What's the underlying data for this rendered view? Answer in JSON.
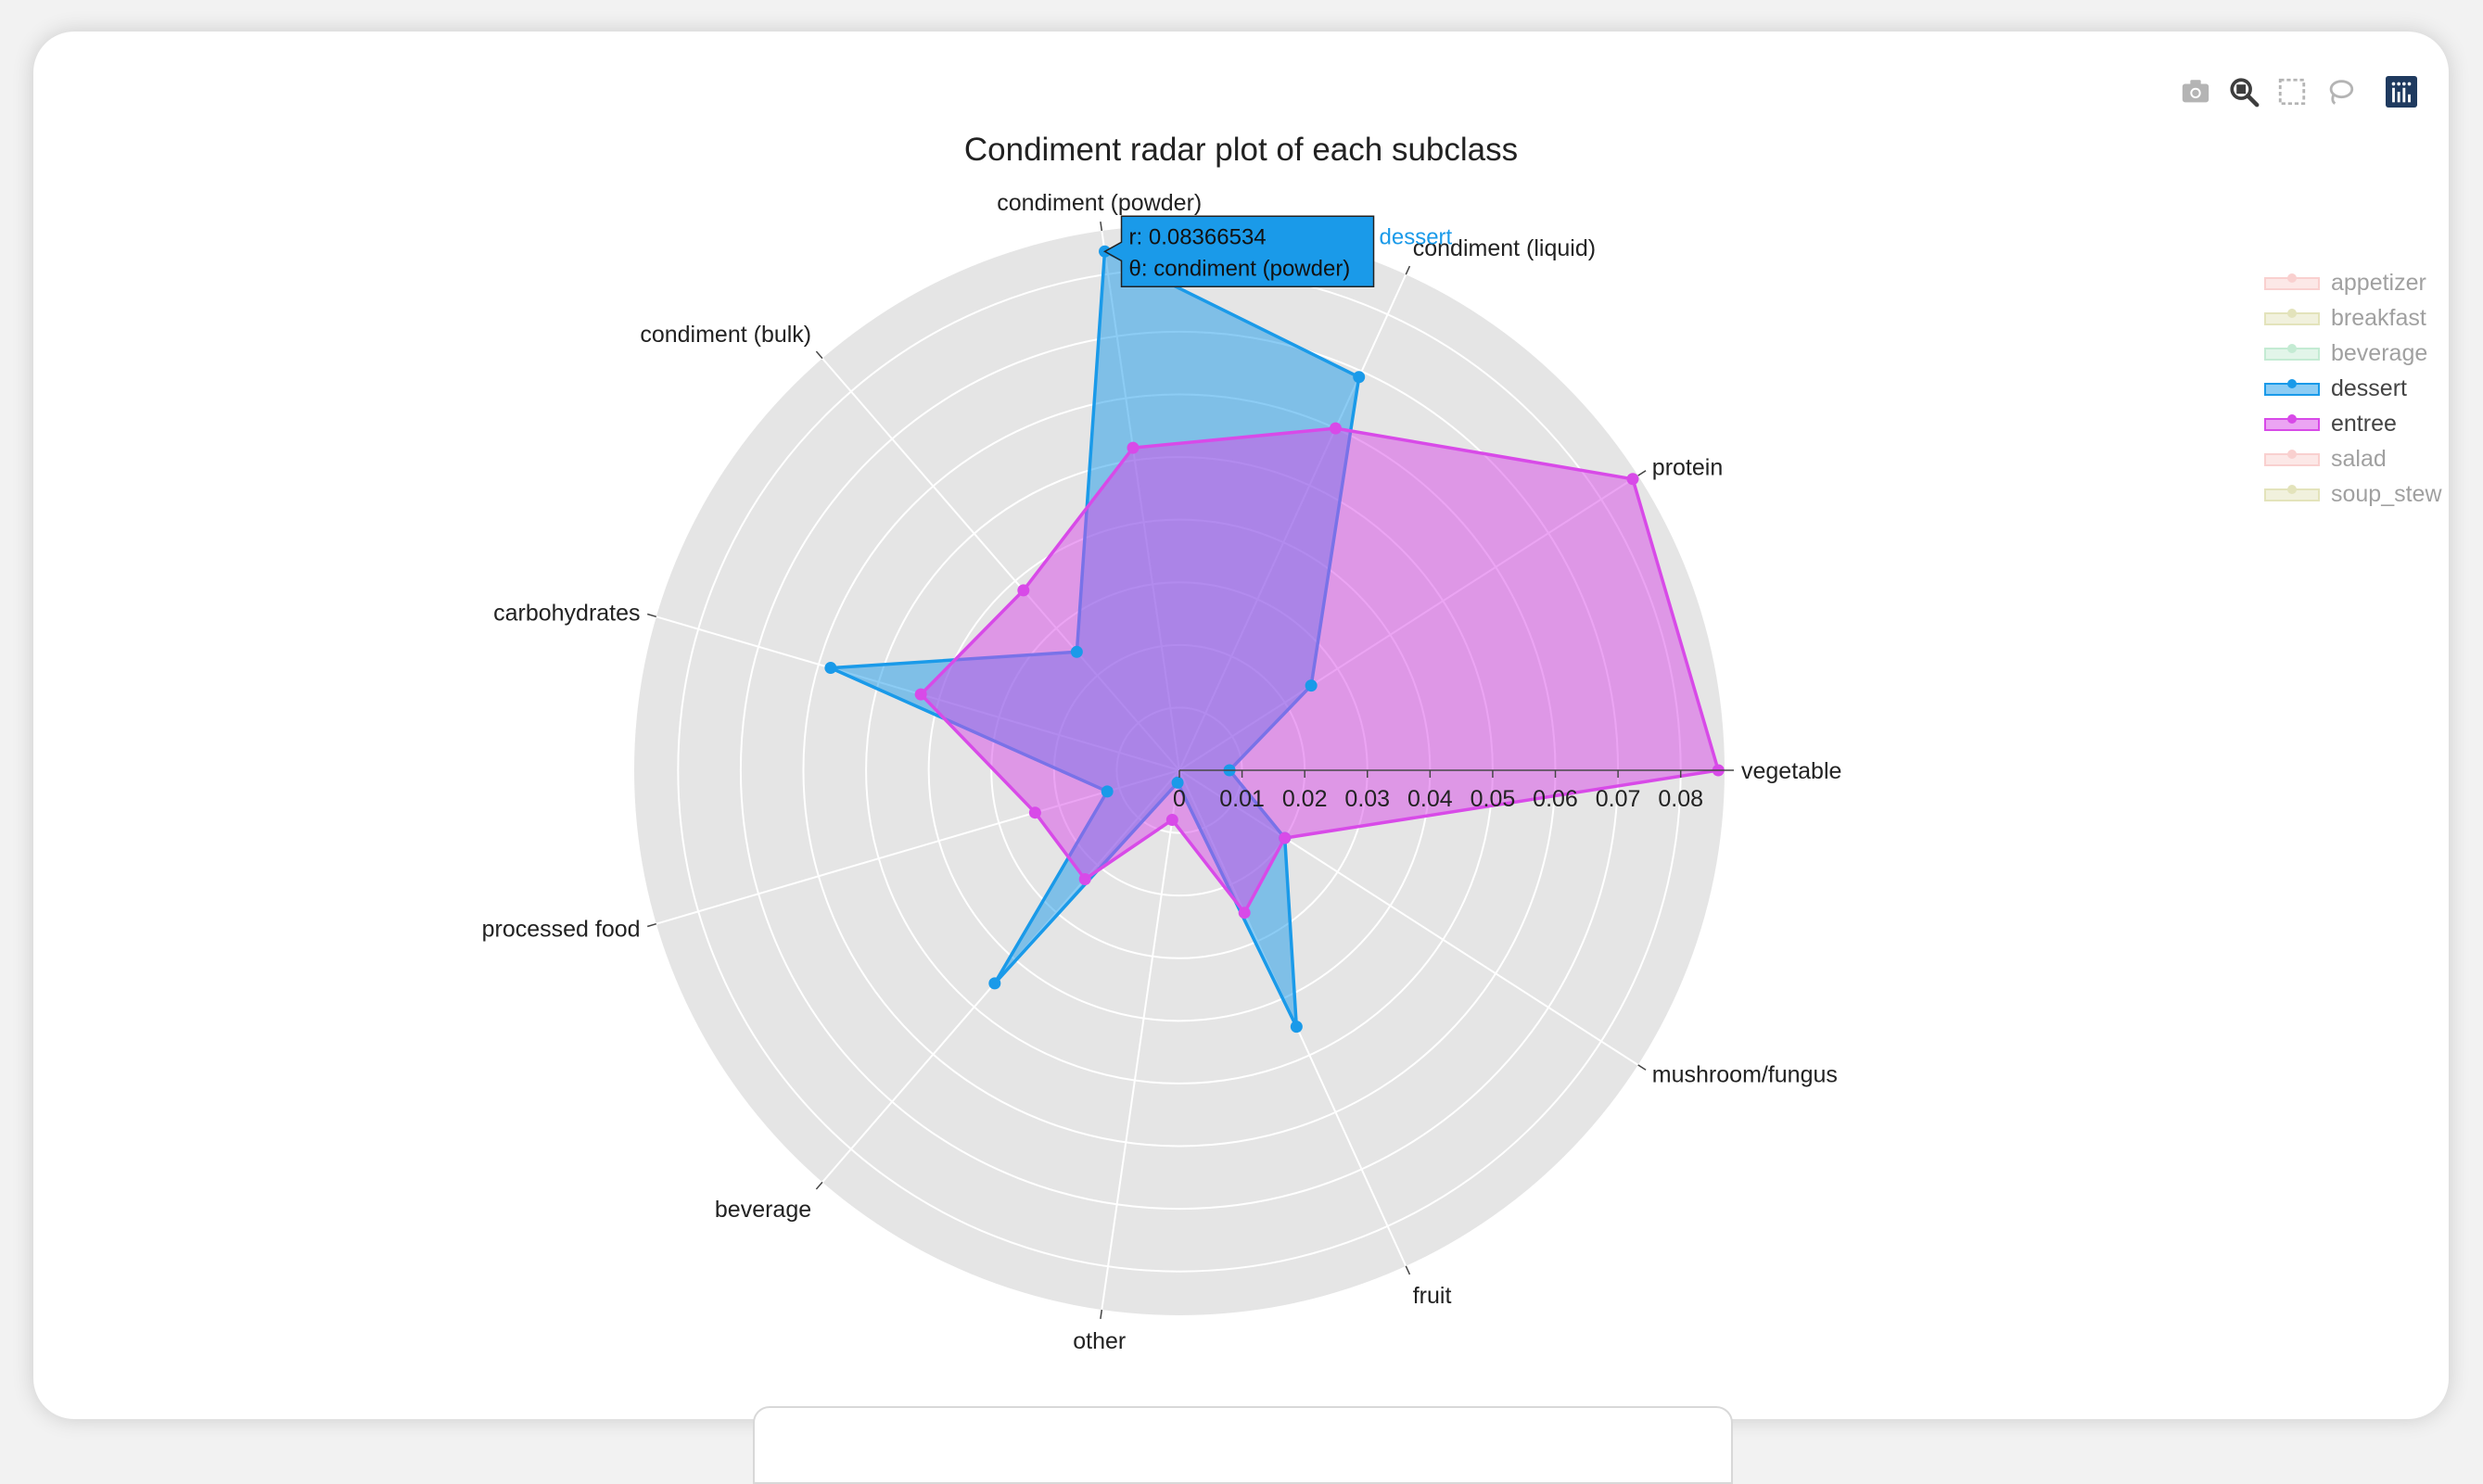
{
  "chart_data": {
    "type": "radar",
    "title": "Condiment radar plot of each subclass",
    "categories": [
      "vegetable",
      "protein",
      "condiment (liquid)",
      "condiment (powder)",
      "condiment (bulk)",
      "carbohydrates",
      "processed food",
      "beverage",
      "other",
      "fruit",
      "mushroom/fungus"
    ],
    "radial_range": [
      0,
      0.087
    ],
    "radial_ticks": [
      "0",
      "0.01",
      "0.02",
      "0.03",
      "0.04",
      "0.05",
      "0.06",
      "0.07",
      "0.08"
    ],
    "radial_tick_values": [
      0,
      0.01,
      0.02,
      0.03,
      0.04,
      0.05,
      0.06,
      0.07,
      0.08
    ],
    "series": [
      {
        "name": "dessert",
        "color": "#1a9ae9",
        "visible": true,
        "values": [
          0.008,
          0.025,
          0.069,
          0.08366534,
          0.025,
          0.058,
          0.012,
          0.045,
          0.002,
          0.045,
          0.02
        ]
      },
      {
        "name": "entree",
        "color": "#d84ae8",
        "visible": true,
        "values": [
          0.086,
          0.086,
          0.06,
          0.052,
          0.038,
          0.043,
          0.024,
          0.023,
          0.008,
          0.025,
          0.02
        ]
      }
    ],
    "legend": {
      "placement": "top-right",
      "items": [
        {
          "name": "appetizer",
          "color": "#f4a3a0",
          "visible": false
        },
        {
          "name": "breakfast",
          "color": "#c8c87a",
          "visible": false
        },
        {
          "name": "beverage",
          "color": "#8ad8a8",
          "visible": false
        },
        {
          "name": "dessert",
          "color": "#1a9ae9",
          "visible": true
        },
        {
          "name": "entree",
          "color": "#d84ae8",
          "visible": true
        },
        {
          "name": "salad",
          "color": "#f4a3a0",
          "visible": false
        },
        {
          "name": "soup_stew",
          "color": "#c8c87a",
          "visible": false
        }
      ]
    },
    "tooltip": {
      "series": "dessert",
      "category": "condiment (powder)",
      "line_r": "r: 0.08366534",
      "line_theta": "θ: condiment (powder)"
    }
  },
  "modebar": {
    "icons": [
      "camera-icon",
      "zoom-icon",
      "box-select-icon",
      "lasso-icon",
      "plotly-logo-icon"
    ]
  }
}
